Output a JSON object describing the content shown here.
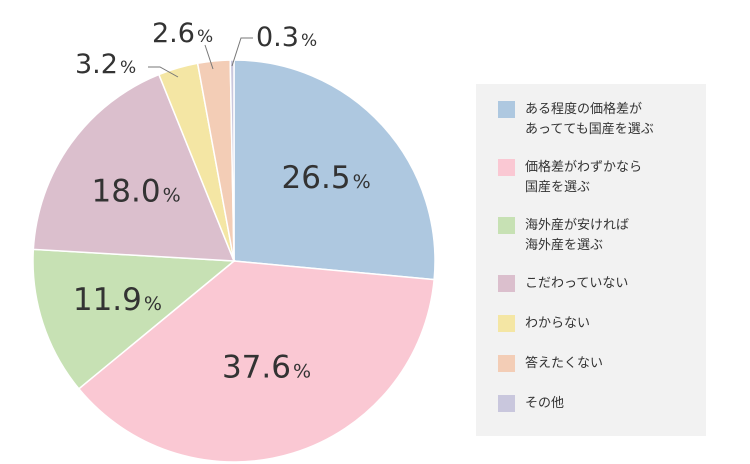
{
  "chart_data": {
    "type": "pie",
    "slices": [
      {
        "label_lines": [
          "ある程度の価格差が",
          "あってても国産を選ぶ"
        ],
        "value": 26.5,
        "pct_text": "26.5",
        "color": "#aec8e0"
      },
      {
        "label_lines": [
          "価格差がわずかなら",
          "国産を選ぶ"
        ],
        "value": 37.6,
        "pct_text": "37.6",
        "color": "#fac8d3"
      },
      {
        "label_lines": [
          "海外産が安ければ",
          "海外産を選ぶ"
        ],
        "value": 11.9,
        "pct_text": "11.9",
        "color": "#c7e1b4"
      },
      {
        "label_lines": [
          "こだわっていない"
        ],
        "value": 18.0,
        "pct_text": "18.0",
        "color": "#dbbfcd"
      },
      {
        "label_lines": [
          "わからない"
        ],
        "value": 3.2,
        "pct_text": "3.2",
        "color": "#f4e6a4"
      },
      {
        "label_lines": [
          "答えたくない"
        ],
        "value": 2.6,
        "pct_text": "2.6",
        "color": "#f3cdb6"
      },
      {
        "label_lines": [
          "その他"
        ],
        "value": 0.3,
        "pct_text": "0.3",
        "color": "#c9c7dd"
      }
    ],
    "unit": "%",
    "start": "12 o'clock",
    "direction": "clockwise",
    "legend_position": "right"
  }
}
